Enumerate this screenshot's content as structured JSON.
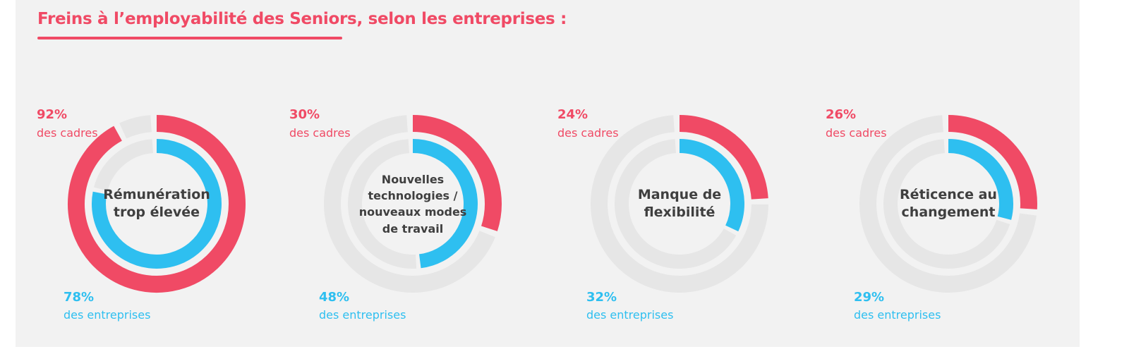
{
  "title": "Freins à l’employabilité des Seniors, selon les entreprises :",
  "colors": {
    "cadres": "#f04a65",
    "entreprises": "#2ebff0",
    "track": "#e6e6e6",
    "panel": "#f2f2f2"
  },
  "chart_data": {
    "type": "donut",
    "title": "Freins à l’employabilité des Seniors, selon les entreprises :",
    "series": [
      {
        "name": "des cadres",
        "color": "#f04a65"
      },
      {
        "name": "des entreprises",
        "color": "#2ebff0"
      }
    ],
    "items": [
      {
        "label": "Rémunération trop élevée",
        "label_lines": [
          "Rémunération",
          "trop élevée"
        ],
        "cadres": 92,
        "entreprises": 78,
        "cadres_text": "92%",
        "entreprises_text": "78%"
      },
      {
        "label": "Nouvelles technologies / nouveaux modes de travail",
        "label_lines": [
          "Nouvelles",
          "technologies /",
          "nouveaux modes",
          "de travail"
        ],
        "cadres": 30,
        "entreprises": 48,
        "cadres_text": "30%",
        "entreprises_text": "48%"
      },
      {
        "label": "Manque de flexibilité",
        "label_lines": [
          "Manque de",
          "flexibilité"
        ],
        "cadres": 24,
        "entreprises": 32,
        "cadres_text": "24%",
        "entreprises_text": "32%"
      },
      {
        "label": "Réticence au changement",
        "label_lines": [
          "Réticence au",
          "changement"
        ],
        "cadres": 26,
        "entreprises": 29,
        "cadres_text": "26%",
        "entreprises_text": "29%"
      }
    ],
    "sublabels": {
      "cadres": "des cadres",
      "entreprises": "des entreprises"
    },
    "unit": "%",
    "max": 100
  }
}
